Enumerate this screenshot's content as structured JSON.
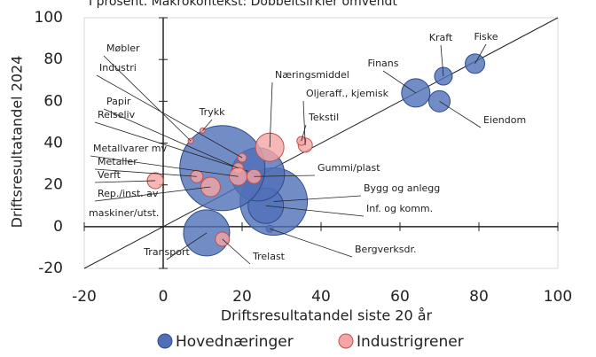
{
  "chart_data": {
    "type": "bubble",
    "title": "I prosent. Makrokontekst: Dobbeltsirkler omvendt",
    "x_label": "Driftsresultatandel siste 20 år",
    "y_label": "Driftsresultatandel 2024",
    "xlim": [
      -20,
      100
    ],
    "ylim": [
      -20,
      100
    ],
    "xticks": [
      -20,
      0,
      20,
      40,
      60,
      80,
      100
    ],
    "yticks": [
      -20,
      0,
      20,
      40,
      60,
      80,
      100
    ],
    "series": [
      {
        "name": "Hovednæringer",
        "color": "#4f6fb8",
        "labels": [
          "Fiske",
          "Kraft",
          "Finans",
          "Eiendom",
          "Transport",
          "Bergverksdr.",
          "Bygg og anlegg",
          "Inf. og komm.",
          "Reiseliv",
          null
        ],
        "x": [
          79,
          71,
          64,
          70,
          11,
          27,
          28,
          26,
          24,
          15
        ],
        "values": [
          78,
          72,
          64,
          60,
          -3,
          -1,
          12,
          10,
          25,
          28
        ],
        "sizes": [
          121,
          100,
          256,
          144,
          676,
          16,
          1444,
          400,
          900,
          2304
        ]
      },
      {
        "name": "Industrigrener",
        "color": "#f4a5a5",
        "labels": [
          "Møbler",
          "Industri",
          "Trykk",
          "Papir",
          "Næringsmiddel",
          "Oljeraff., kjemisk",
          "Tekstil",
          "Metallvarer mv",
          "Metaller",
          "Verft",
          [
            "Rep./inst. av",
            "maskiner/utst."
          ],
          "Gummi/plast",
          "Trelast"
        ],
        "x": [
          7,
          20,
          10,
          19,
          27,
          36,
          35,
          19,
          8.5,
          -2,
          12,
          23,
          15
        ],
        "values": [
          41,
          33,
          46,
          28,
          38,
          39,
          41,
          24,
          24,
          22,
          19,
          24,
          -6
        ],
        "sizes": [
          9,
          25,
          9,
          36,
          256,
          64,
          25,
          100,
          49,
          81,
          121,
          64,
          64
        ]
      }
    ]
  }
}
